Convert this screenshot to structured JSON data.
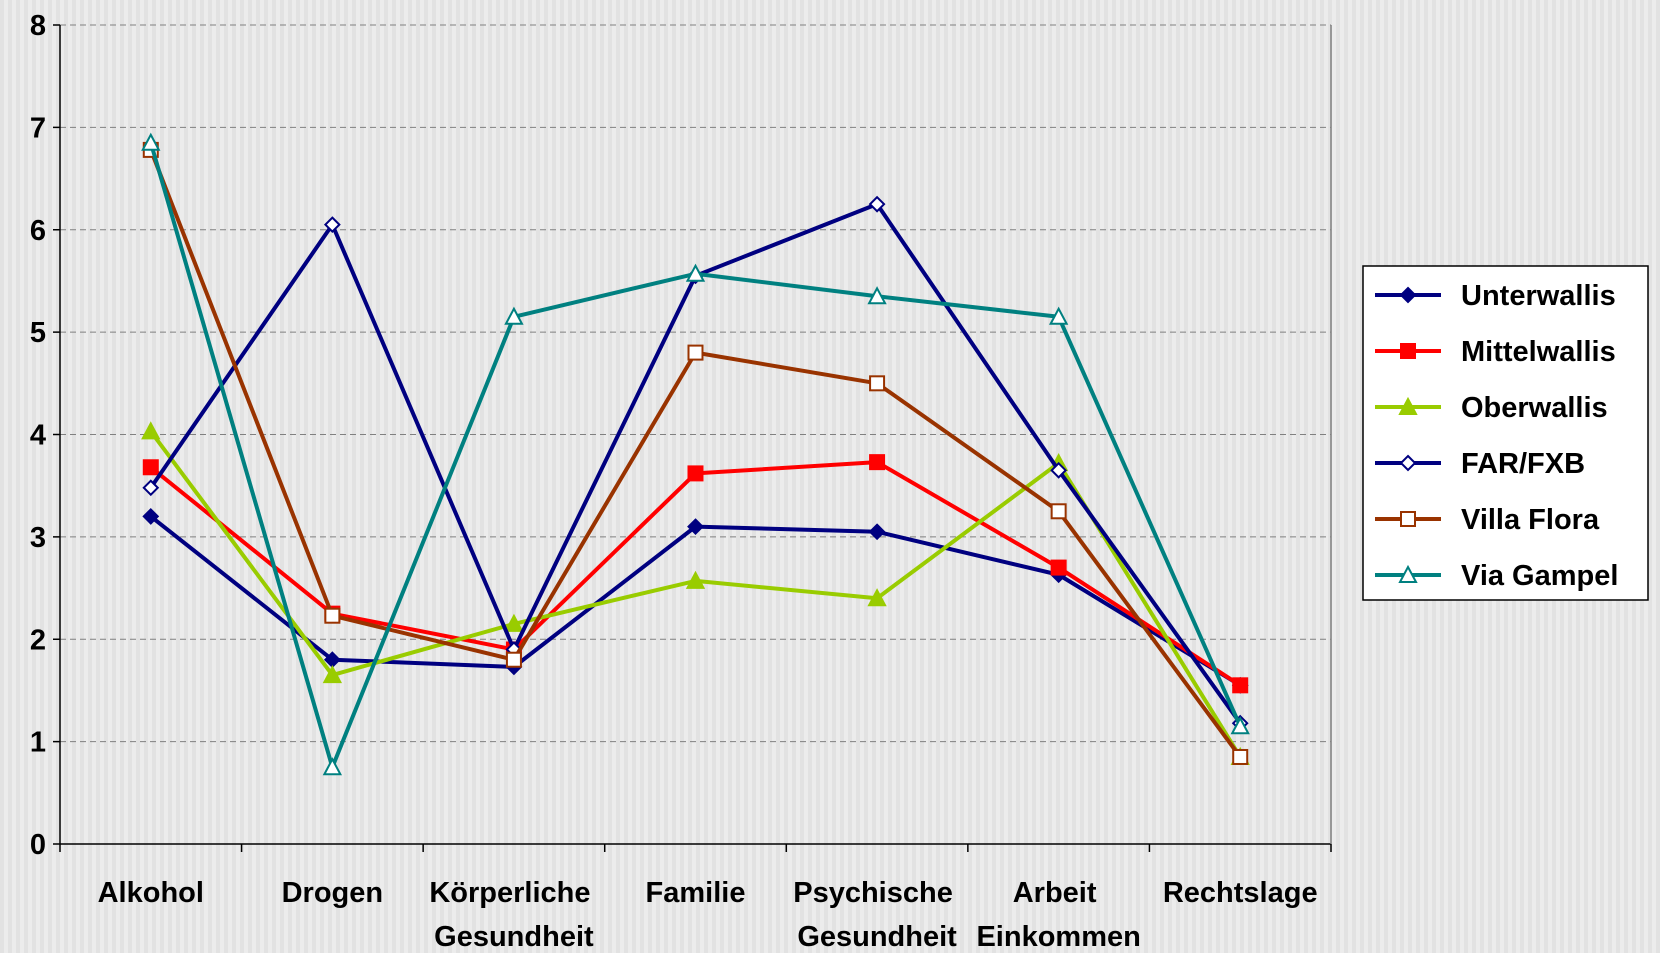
{
  "chart_data": {
    "type": "line",
    "categories": [
      "Alkohol",
      "Drogen",
      "Körperliche Gesundheit",
      "Familie",
      "Psychische Gesundheit",
      "Arbeit Einkommen",
      "Rechtslage"
    ],
    "series": [
      {
        "name": "Unterwallis",
        "color": "#000080",
        "marker": "diamond",
        "filled": true,
        "values": [
          3.2,
          1.8,
          1.73,
          3.1,
          3.05,
          2.63,
          1.55
        ]
      },
      {
        "name": "Mittelwallis",
        "color": "#ff0000",
        "marker": "square",
        "filled": true,
        "values": [
          3.68,
          2.25,
          1.9,
          3.62,
          3.73,
          2.7,
          1.55
        ]
      },
      {
        "name": "Oberwallis",
        "color": "#99cc00",
        "marker": "triangle",
        "filled": true,
        "values": [
          4.03,
          1.65,
          2.15,
          2.57,
          2.4,
          3.72,
          0.85
        ]
      },
      {
        "name": "FAR/FXB",
        "color": "#000080",
        "marker": "diamond",
        "filled": false,
        "values": [
          3.48,
          6.05,
          1.9,
          5.55,
          6.25,
          3.65,
          1.18
        ]
      },
      {
        "name": "Villa Flora",
        "color": "#993300",
        "marker": "square",
        "filled": false,
        "values": [
          6.78,
          2.23,
          1.8,
          4.8,
          4.5,
          3.25,
          0.85
        ]
      },
      {
        "name": "Via Gampel",
        "color": "#008080",
        "marker": "triangle",
        "filled": false,
        "values": [
          6.85,
          0.75,
          5.15,
          5.57,
          5.35,
          5.15,
          1.15
        ]
      }
    ],
    "ylim": [
      0,
      8
    ],
    "yticks": [
      0,
      1,
      2,
      3,
      4,
      5,
      6,
      7,
      8
    ],
    "grid": true,
    "legend": "right"
  }
}
